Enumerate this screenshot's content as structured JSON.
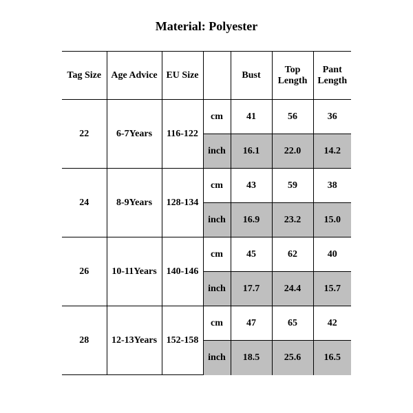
{
  "title": "Material: Polyester",
  "table": {
    "columns": {
      "tag_size": {
        "label": "Tag Size",
        "width": 65
      },
      "age_advice": {
        "label": "Age Advice",
        "width": 80
      },
      "eu_size": {
        "label": "EU Size",
        "width": 60
      },
      "unit": {
        "label": "",
        "width": 40
      },
      "bust": {
        "label": "Bust",
        "width": 60
      },
      "top_length": {
        "label": "Top Length",
        "width": 60
      },
      "pant_length": {
        "label": "Pant Length",
        "width": 55
      }
    },
    "unit_labels": {
      "cm": "cm",
      "inch": "inch"
    },
    "inch_row_bg": "#bfbfbf",
    "rows": [
      {
        "tag_size": "22",
        "age_advice": "6-7Years",
        "eu_size": "116-122",
        "cm": {
          "bust": "41",
          "top_length": "56",
          "pant_length": "36"
        },
        "inch": {
          "bust": "16.1",
          "top_length": "22.0",
          "pant_length": "14.2"
        }
      },
      {
        "tag_size": "24",
        "age_advice": "8-9Years",
        "eu_size": "128-134",
        "cm": {
          "bust": "43",
          "top_length": "59",
          "pant_length": "38"
        },
        "inch": {
          "bust": "16.9",
          "top_length": "23.2",
          "pant_length": "15.0"
        }
      },
      {
        "tag_size": "26",
        "age_advice": "10-11Years",
        "eu_size": "140-146",
        "cm": {
          "bust": "45",
          "top_length": "62",
          "pant_length": "40"
        },
        "inch": {
          "bust": "17.7",
          "top_length": "24.4",
          "pant_length": "15.7"
        }
      },
      {
        "tag_size": "28",
        "age_advice": "12-13Years",
        "eu_size": "152-158",
        "cm": {
          "bust": "47",
          "top_length": "65",
          "pant_length": "42"
        },
        "inch": {
          "bust": "18.5",
          "top_length": "25.6",
          "pant_length": "16.5"
        }
      }
    ]
  }
}
